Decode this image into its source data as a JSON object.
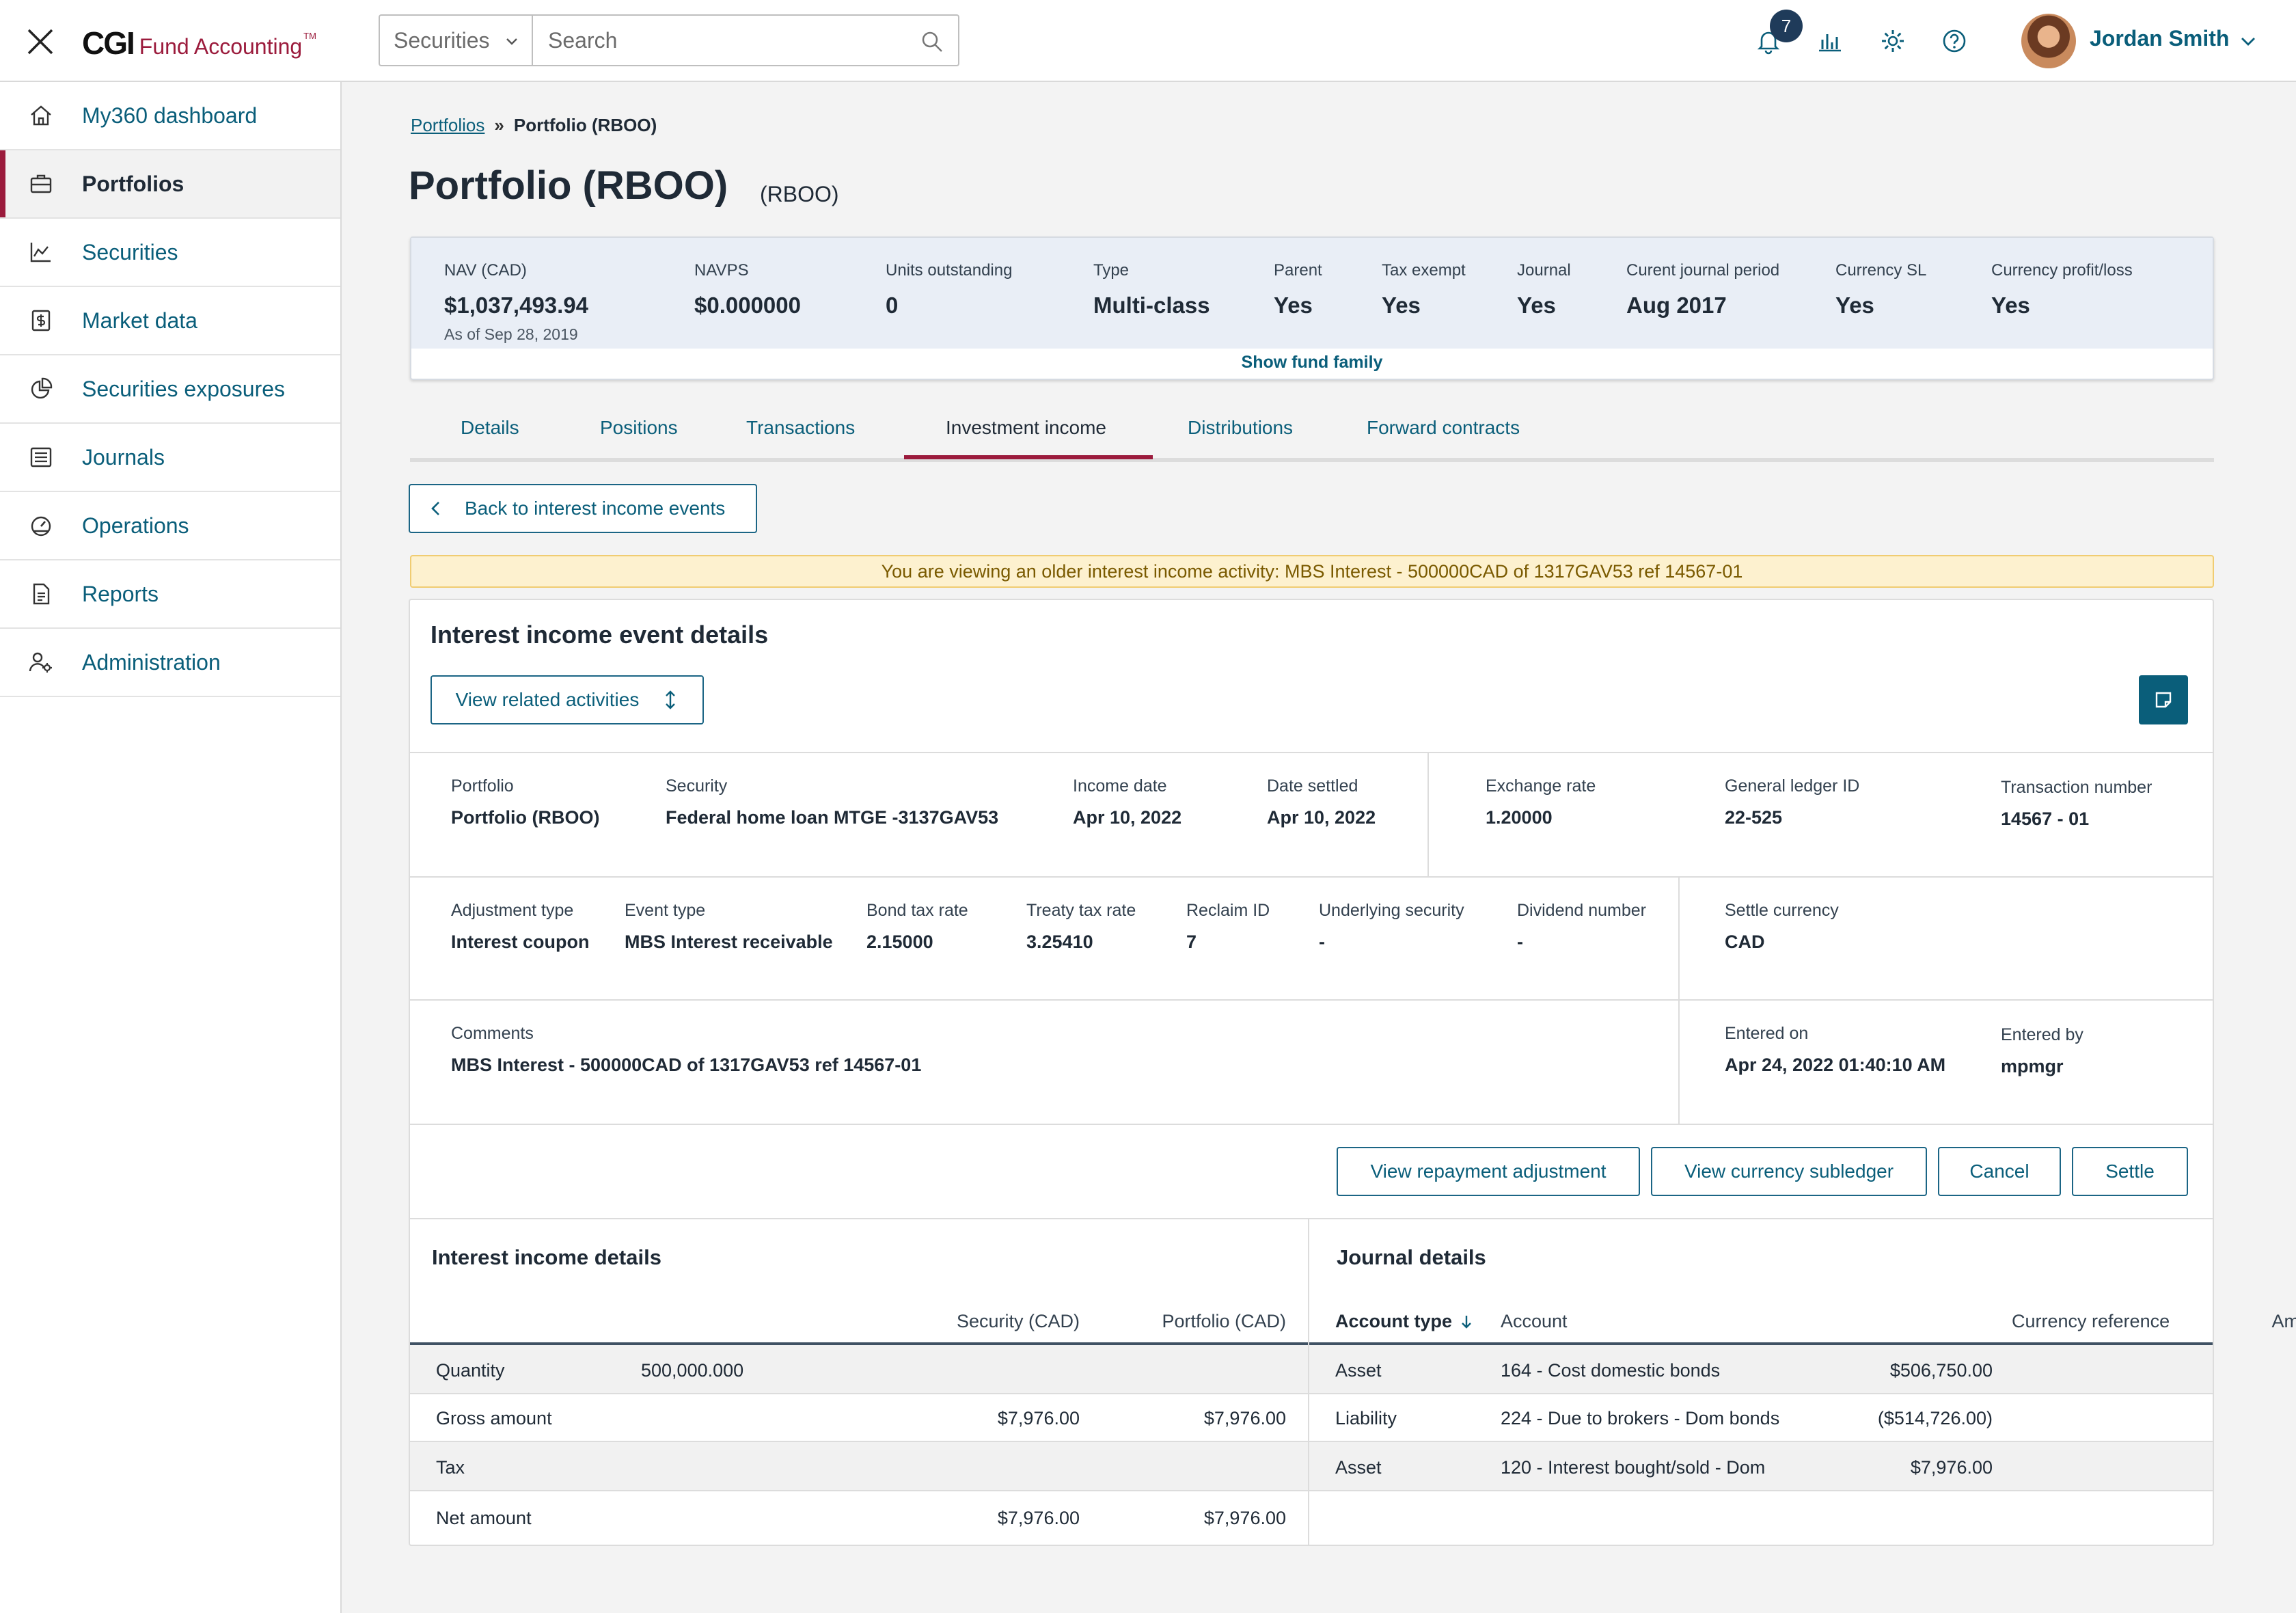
{
  "app": {
    "logo_main": "CGI",
    "logo_product": "Fund Accounting",
    "logo_tm": "TM"
  },
  "topbar": {
    "search_scope": "Securities",
    "search_placeholder": "Search",
    "notification_count": "7",
    "user_name": "Jordan Smith"
  },
  "sidebar": {
    "items": [
      {
        "label": "My360 dashboard",
        "icon": "home-icon"
      },
      {
        "label": "Portfolios",
        "icon": "briefcase-icon",
        "active": true
      },
      {
        "label": "Securities",
        "icon": "chart-icon"
      },
      {
        "label": "Market data",
        "icon": "dollar-icon"
      },
      {
        "label": "Securities exposures",
        "icon": "pie-icon"
      },
      {
        "label": "Journals",
        "icon": "list-icon"
      },
      {
        "label": "Operations",
        "icon": "gauge-icon"
      },
      {
        "label": "Reports",
        "icon": "document-icon"
      },
      {
        "label": "Administration",
        "icon": "user-gear-icon"
      }
    ]
  },
  "breadcrumb": {
    "parent": "Portfolios",
    "separator": "»",
    "current": "Portfolio (RBOO)"
  },
  "page": {
    "title": "Portfolio (RBOO)",
    "subtitle": "(RBOO)"
  },
  "summary": {
    "stats": [
      {
        "label": "NAV (CAD)",
        "value": "$1,037,493.94",
        "note": "As of Sep 28, 2019"
      },
      {
        "label": "NAVPS",
        "value": "$0.000000"
      },
      {
        "label": "Units outstanding",
        "value": "0"
      },
      {
        "label": "Type",
        "value": "Multi-class"
      },
      {
        "label": "Parent",
        "value": "Yes"
      },
      {
        "label": "Tax exempt",
        "value": "Yes"
      },
      {
        "label": "Journal",
        "value": "Yes"
      },
      {
        "label": "Curent journal period",
        "value": "Aug 2017"
      },
      {
        "label": "Currency SL",
        "value": "Yes"
      },
      {
        "label": "Currency profit/loss",
        "value": "Yes"
      }
    ],
    "show_fund_family": "Show fund family"
  },
  "tabs": [
    "Details",
    "Positions",
    "Transactions",
    "Investment income",
    "Distributions",
    "Forward contracts"
  ],
  "back_button": "Back to interest income events",
  "alert": "You are viewing an older interest income activity: MBS Interest - 500000CAD of 1317GAV53 ref 14567-01",
  "event": {
    "title": "Interest income event details",
    "related_button": "View related activities",
    "row1": [
      {
        "label": "Portfolio",
        "value": "Portfolio (RBOO)"
      },
      {
        "label": "Security",
        "value": "Federal home loan MTGE -3137GAV53"
      },
      {
        "label": "Income date",
        "value": "Apr 10, 2022"
      },
      {
        "label": "Date settled",
        "value": "Apr 10, 2022"
      },
      {
        "label": "Exchange rate",
        "value": "1.20000"
      },
      {
        "label": "General ledger ID",
        "value": "22-525"
      },
      {
        "label": "Transaction number",
        "value": "14567 - 01"
      }
    ],
    "row2": [
      {
        "label": "Adjustment type",
        "value": "Interest coupon"
      },
      {
        "label": "Event type",
        "value": "MBS Interest receivable"
      },
      {
        "label": "Bond tax rate",
        "value": "2.15000"
      },
      {
        "label": "Treaty tax rate",
        "value": "3.25410"
      },
      {
        "label": "Reclaim ID",
        "value": "7"
      },
      {
        "label": "Underlying security",
        "value": "-"
      },
      {
        "label": "Dividend number",
        "value": "-"
      },
      {
        "label": "Settle currency",
        "value": "CAD"
      }
    ],
    "row3": [
      {
        "label": "Comments",
        "value": "MBS Interest - 500000CAD of 1317GAV53 ref 14567-01"
      },
      {
        "label": "Entered on",
        "value": "Apr 24, 2022 01:40:10 AM"
      },
      {
        "label": "Entered by",
        "value": "mpmgr"
      }
    ],
    "actions": {
      "repayment": "View repayment adjustment",
      "subledger": "View currency subledger",
      "cancel": "Cancel",
      "settle": "Settle"
    }
  },
  "interest_income": {
    "title": "Interest income details",
    "columns": [
      "Security (CAD)",
      "Portfolio (CAD)"
    ],
    "rows": [
      {
        "label": "Quantity",
        "quantity": "500,000.000",
        "security": "",
        "portfolio": ""
      },
      {
        "label": "Gross amount",
        "quantity": "",
        "security": "$7,976.00",
        "portfolio": "$7,976.00"
      },
      {
        "label": "Tax",
        "quantity": "",
        "security": "",
        "portfolio": ""
      },
      {
        "label": "Net amount",
        "quantity": "",
        "security": "$7,976.00",
        "portfolio": "$7,976.00"
      }
    ]
  },
  "journal": {
    "title": "Journal details",
    "columns": [
      "Account type",
      "Account",
      "Amount (CAD)",
      "Currency reference"
    ],
    "rows": [
      {
        "type": "Asset",
        "account": "164 - Cost domestic bonds",
        "amount": "$506,750.00",
        "ref": ""
      },
      {
        "type": "Liability",
        "account": "224 - Due to brokers - Dom bonds",
        "amount": "($514,726.00)",
        "ref": ""
      },
      {
        "type": "Asset",
        "account": "120 - Interest bought/sold - Dom",
        "amount": "$7,976.00",
        "ref": ""
      }
    ]
  },
  "colors": {
    "accent": "#9b1b3c",
    "link": "#0a5e7a",
    "band": "#e9eef6",
    "alert_bg": "#fdf1cf"
  }
}
